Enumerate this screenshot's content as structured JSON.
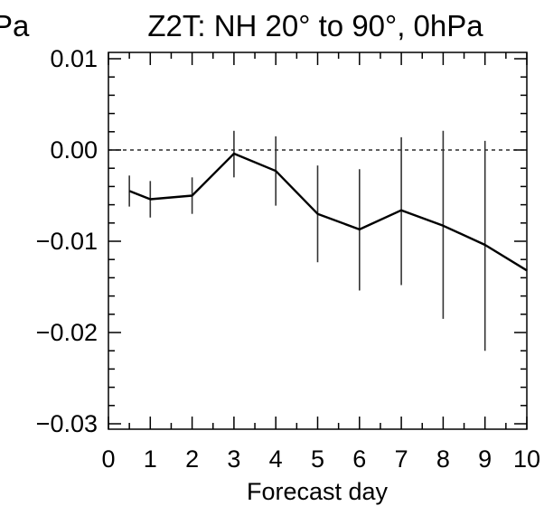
{
  "page": {
    "title_fragment": "Pa"
  },
  "chart_data": {
    "type": "line",
    "title": "Z2T: NH 20° to 90°, 0hPa",
    "xlabel": "Forecast day",
    "ylabel": "",
    "xlim": [
      0,
      10
    ],
    "ylim": [
      -0.031,
      0.01
    ],
    "x_ticks": [
      0,
      1,
      2,
      3,
      4,
      5,
      6,
      7,
      8,
      9,
      10
    ],
    "x_tick_labels": [
      "0",
      "1",
      "2",
      "3",
      "4",
      "5",
      "6",
      "7",
      "8",
      "9",
      "10"
    ],
    "y_ticks": [
      0.01,
      0.0,
      -0.01,
      -0.02,
      -0.03
    ],
    "y_tick_labels": [
      "0.01",
      "0.00",
      "−0.01",
      "−0.02",
      "−0.03"
    ],
    "reference_line": {
      "y": 0.0,
      "style": "dashed"
    },
    "grid": false,
    "series": [
      {
        "x": [
          0.5,
          1,
          2,
          3,
          4,
          5,
          6,
          7,
          8,
          9,
          10
        ],
        "values": [
          -0.0045,
          -0.0054,
          -0.005,
          -0.0004,
          -0.0023,
          -0.007,
          -0.0087,
          -0.0066,
          -0.0083,
          -0.0104,
          -0.0132
        ],
        "error_low": [
          -0.0062,
          -0.0074,
          -0.007,
          -0.003,
          -0.0061,
          -0.0123,
          -0.0154,
          -0.0148,
          -0.0185,
          -0.022,
          -0.0263
        ],
        "error_high": [
          -0.0028,
          -0.0034,
          -0.003,
          0.0021,
          0.0015,
          -0.0017,
          -0.0021,
          0.0014,
          0.0021,
          0.001,
          -0.0001
        ]
      }
    ]
  }
}
